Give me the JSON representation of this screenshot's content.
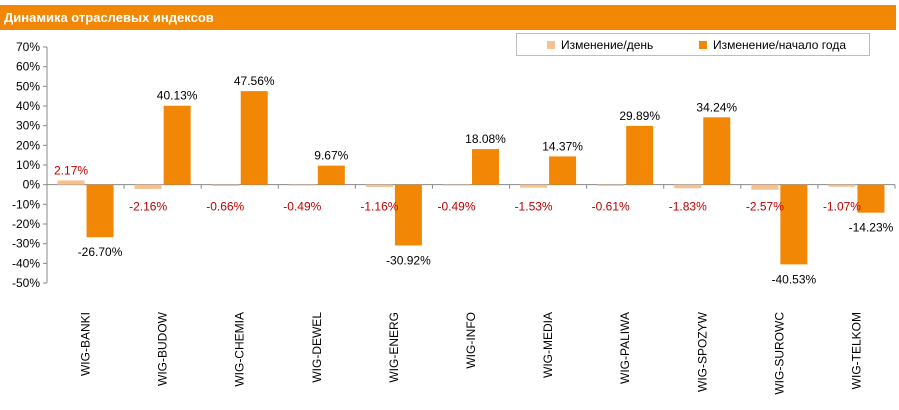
{
  "title": "Динамика отраслевых индексов",
  "legend": {
    "day_label": "Изменение/день",
    "ytd_label": "Изменение/начало года"
  },
  "colors": {
    "title_bar": "#f28705",
    "ytd_bar": "#f28705",
    "day_bar": "#f6c08f",
    "day_label_text": "#c00000"
  },
  "chart_data": {
    "type": "bar",
    "categories": [
      "WIG-BANKI",
      "WIG-BUDOW",
      "WIG-CHEMIA",
      "WIG-DEWEL",
      "WIG-ENERG",
      "WIG-INFO",
      "WIG-MEDIA",
      "WIG-PALIWA",
      "WIG-SPOZYW",
      "WIG-SUROWC",
      "WIG-TELKOM"
    ],
    "series": [
      {
        "name": "Изменение/день",
        "values": [
          2.17,
          -2.16,
          -0.66,
          -0.49,
          -1.16,
          -0.49,
          -1.53,
          -0.61,
          -1.83,
          -2.57,
          -1.07
        ],
        "labels": [
          "2.17%",
          "-2.16%",
          "-0.66%",
          "-0.49%",
          "-1.16%",
          "-0.49%",
          "-1.53%",
          "-0.61%",
          "-1.83%",
          "-2.57%",
          "-1.07%"
        ]
      },
      {
        "name": "Изменение/начало года",
        "values": [
          -26.7,
          40.13,
          47.56,
          9.67,
          -30.92,
          18.08,
          14.37,
          29.89,
          34.24,
          -40.53,
          -14.23
        ],
        "labels": [
          "-26.70%",
          "40.13%",
          "47.56%",
          "9.67%",
          "-30.92%",
          "18.08%",
          "14.37%",
          "29.89%",
          "34.24%",
          "-40.53%",
          "-14.23%"
        ]
      }
    ],
    "ylim": [
      -50,
      70
    ],
    "yticks": [
      70,
      60,
      50,
      40,
      30,
      20,
      10,
      0,
      -10,
      -20,
      -30,
      -40,
      -50
    ],
    "ytick_labels": [
      "70%",
      "60%",
      "50%",
      "40%",
      "30%",
      "20%",
      "10%",
      "0%",
      "-10%",
      "-20%",
      "-30%",
      "-40%",
      "-50%"
    ],
    "grid": false,
    "legend_position": "top-right"
  }
}
